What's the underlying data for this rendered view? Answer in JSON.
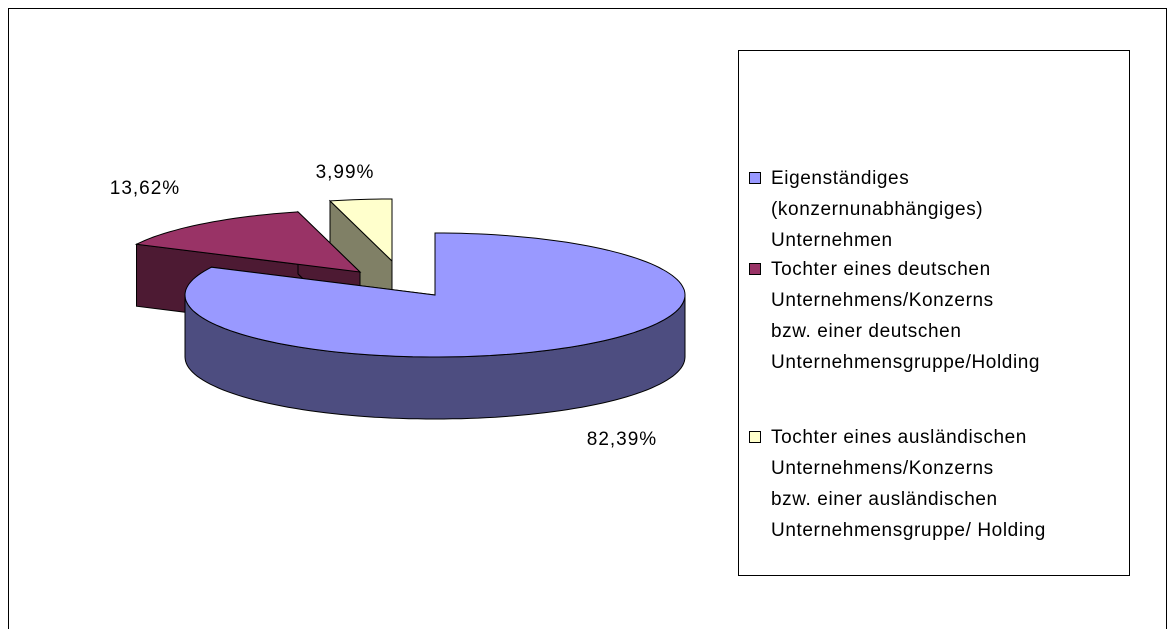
{
  "chart_data": {
    "type": "pie3d",
    "categories": [
      "Eigenständiges\n(konzernunabhängiges)\nUnternehmen",
      "Tochter eines deutschen\nUnternehmens/Konzerns\nbzw. einer deutschen\nUnternehmensgruppe/Holding",
      "Tochter eines ausländischen\nUnternehmens/Konzerns\nbzw. einer ausländischen\nUnternehmensgruppe/ Holding"
    ],
    "values": [
      82.39,
      13.62,
      3.99
    ],
    "value_labels": [
      "82,39%",
      "13,62%",
      "3,99%"
    ],
    "colors": [
      "#9999ff",
      "#993366",
      "#ffffcc"
    ],
    "legend": "right"
  }
}
